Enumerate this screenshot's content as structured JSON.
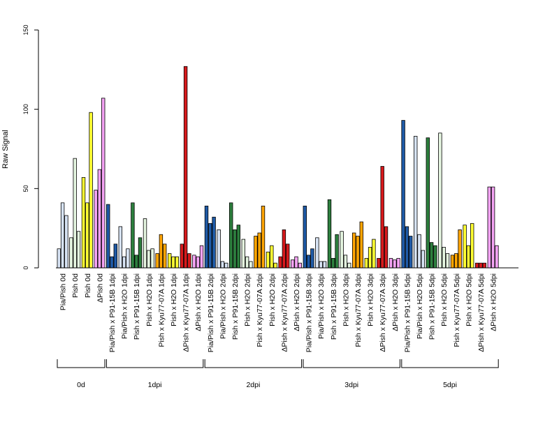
{
  "chart_data": {
    "type": "bar",
    "ylabel": "Raw Signal",
    "xlabel": "",
    "title": "",
    "ylim": [
      0,
      150
    ],
    "yticks": [
      0,
      50,
      100,
      150
    ],
    "groups": [
      {
        "label": "Pia/Pish 0d",
        "color": "#D7E3F4",
        "values": [
          12,
          41,
          33
        ]
      },
      {
        "label": "Pish 0d",
        "color": "#E5F5E0",
        "values": [
          19,
          69,
          23
        ]
      },
      {
        "label": "Pish 0d",
        "color": "#FFFF33",
        "values": [
          57,
          41,
          98
        ]
      },
      {
        "label": "ΔPish 0d",
        "color": "#F4A3F4",
        "values": [
          49,
          62,
          107
        ]
      },
      {
        "label": "Pia/Pish x P91-15B 1dpi",
        "color": "#1F5AA6",
        "values": [
          40,
          7,
          15
        ]
      },
      {
        "label": "Pia/Pish x H2O 1dpi",
        "color": "#D7E3F4",
        "values": [
          26,
          7,
          12
        ]
      },
      {
        "label": "Pish x P91-15B 1dpi",
        "color": "#2D7F3E",
        "values": [
          41,
          8,
          19
        ]
      },
      {
        "label": "Pish x H2O 1dpi",
        "color": "#E5F5E0",
        "values": [
          31,
          11,
          12
        ]
      },
      {
        "label": "Pish x Kyu77-07A 1dpi",
        "color": "#FFA500",
        "values": [
          9,
          21,
          15
        ]
      },
      {
        "label": "Pish x H2O 1dpi",
        "color": "#FFFF33",
        "values": [
          9,
          7,
          7
        ]
      },
      {
        "label": "ΔPish x Kyu77-07A 1dpi",
        "color": "#D7191C",
        "values": [
          15,
          127,
          9
        ]
      },
      {
        "label": "ΔPish x H2O 1dpi",
        "color": "#F4A3F4",
        "values": [
          8,
          7,
          14
        ]
      },
      {
        "label": "Pia/Pish x P91-15B 2dpi",
        "color": "#1F5AA6",
        "values": [
          39,
          28,
          32
        ]
      },
      {
        "label": "Pia/Pish x H2O 2dpi",
        "color": "#D7E3F4",
        "values": [
          24,
          4,
          3
        ]
      },
      {
        "label": "Pish x P91-15B 2dpi",
        "color": "#2D7F3E",
        "values": [
          41,
          24,
          27
        ]
      },
      {
        "label": "Pish x H2O 2dpi",
        "color": "#E5F5E0",
        "values": [
          18,
          7,
          4
        ]
      },
      {
        "label": "Pish x Kyu77-07A 2dpi",
        "color": "#FFA500",
        "values": [
          20,
          22,
          39
        ]
      },
      {
        "label": "Pish x H2O 2dpi",
        "color": "#FFFF33",
        "values": [
          10,
          14,
          3
        ]
      },
      {
        "label": "ΔPish x Kyu77-07A 2dpi",
        "color": "#D7191C",
        "values": [
          7,
          24,
          15
        ]
      },
      {
        "label": "ΔPish x H2O 2dpi",
        "color": "#F4A3F4",
        "values": [
          5,
          7,
          3
        ]
      },
      {
        "label": "Pia/Pish x P91-15B 3dpi",
        "color": "#1F5AA6",
        "values": [
          39,
          8,
          12
        ]
      },
      {
        "label": "Pia/Pish x H2O 3dpi",
        "color": "#D7E3F4",
        "values": [
          19,
          4,
          4
        ]
      },
      {
        "label": "Pish x P91-15B 3dpi",
        "color": "#2D7F3E",
        "values": [
          43,
          6,
          21
        ]
      },
      {
        "label": "Pish x H2O 3dpi",
        "color": "#E5F5E0",
        "values": [
          23,
          8,
          3
        ]
      },
      {
        "label": "Pish x Kyu77-07A 3dpi",
        "color": "#FFA500",
        "values": [
          22,
          20,
          29
        ]
      },
      {
        "label": "Pish x H2O 3dpi",
        "color": "#FFFF33",
        "values": [
          6,
          13,
          18
        ]
      },
      {
        "label": "ΔPish x Kyu77-07A 3dpi",
        "color": "#D7191C",
        "values": [
          6,
          64,
          26
        ]
      },
      {
        "label": "ΔPish x H2O 3dpi",
        "color": "#F4A3F4",
        "values": [
          6,
          5,
          6
        ]
      },
      {
        "label": "Pia/Pish x P91-15B 5dpi",
        "color": "#1F5AA6",
        "values": [
          93,
          26,
          20
        ]
      },
      {
        "label": "Pia/Pish x H2O 5dpi",
        "color": "#D7E3F4",
        "values": [
          83,
          21,
          11
        ]
      },
      {
        "label": "Pish x P91-15B 5dpi",
        "color": "#2D7F3E",
        "values": [
          82,
          16,
          14
        ]
      },
      {
        "label": "Pish x H2O 5dpi",
        "color": "#E5F5E0",
        "values": [
          85,
          13,
          9
        ]
      },
      {
        "label": "Pish x Kyu77-07A 5dpi",
        "color": "#FFA500",
        "values": [
          8,
          9,
          24
        ]
      },
      {
        "label": "Pish x H2O 5dpi",
        "color": "#FFFF33",
        "values": [
          27,
          14,
          28
        ]
      },
      {
        "label": "ΔPish x Kyu77-07A 5dpi",
        "color": "#D7191C",
        "values": [
          3,
          3,
          3
        ]
      },
      {
        "label": "ΔPish x H2O 5dpi",
        "color": "#F4A3F4",
        "values": [
          51,
          51,
          14
        ]
      }
    ],
    "time_brackets": [
      {
        "label": "0d",
        "start_group": 0,
        "end_group": 3
      },
      {
        "label": "1dpi",
        "start_group": 4,
        "end_group": 11
      },
      {
        "label": "2dpi",
        "start_group": 12,
        "end_group": 19
      },
      {
        "label": "3dpi",
        "start_group": 20,
        "end_group": 27
      },
      {
        "label": "5dpi",
        "start_group": 28,
        "end_group": 35
      }
    ]
  }
}
